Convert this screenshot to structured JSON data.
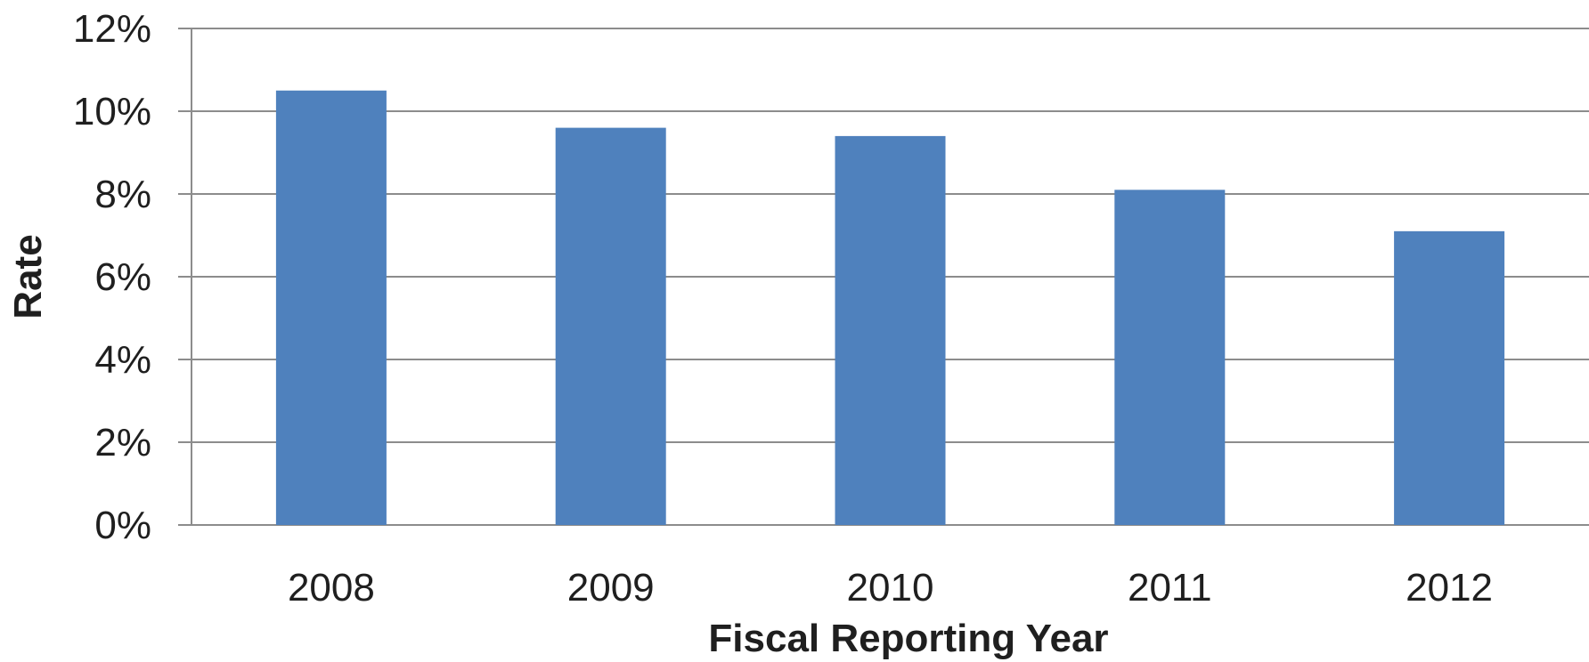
{
  "chart_data": {
    "type": "bar",
    "categories": [
      "2008",
      "2009",
      "2010",
      "2011",
      "2012"
    ],
    "series": [
      {
        "values": [
          0.105,
          0.096,
          0.094,
          0.081,
          0.071
        ],
        "color": "#4f81bd"
      }
    ],
    "xlabel": "Fiscal Reporting Year",
    "ylabel": "Rate",
    "ylim": [
      0,
      0.12
    ],
    "yticks": [
      0,
      0.02,
      0.04,
      0.06,
      0.08,
      0.1,
      0.12
    ],
    "ytick_labels": [
      "0%",
      "2%",
      "4%",
      "6%",
      "8%",
      "10%",
      "12%"
    ],
    "grid": true,
    "legend": "none",
    "colors": {
      "bar": "#4f81bd",
      "grid": "#8c8c8c",
      "text": "#1f1f1f"
    }
  }
}
